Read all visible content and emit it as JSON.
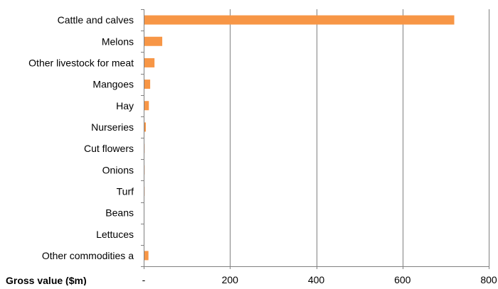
{
  "chart_data": {
    "type": "bar",
    "orientation": "horizontal",
    "categories": [
      "Cattle and calves",
      "Melons",
      "Other livestock for meat",
      "Mangoes",
      "Hay",
      "Nurseries",
      "Cut flowers",
      "Onions",
      "Turf",
      "Beans",
      "Lettuces",
      "Other commodities a"
    ],
    "values": [
      720,
      43,
      25,
      15,
      12,
      5,
      2,
      2,
      2,
      1,
      1,
      11
    ],
    "xlabel": "Gross value ($m)",
    "ylabel": "",
    "xlim": [
      0,
      800
    ],
    "xticks": [
      0,
      200,
      400,
      600,
      800
    ],
    "xtick_labels": [
      "-",
      "200",
      "400",
      "600",
      "800"
    ],
    "grid": "vertical",
    "bar_color": "#F79646",
    "grid_color": "#808080"
  }
}
